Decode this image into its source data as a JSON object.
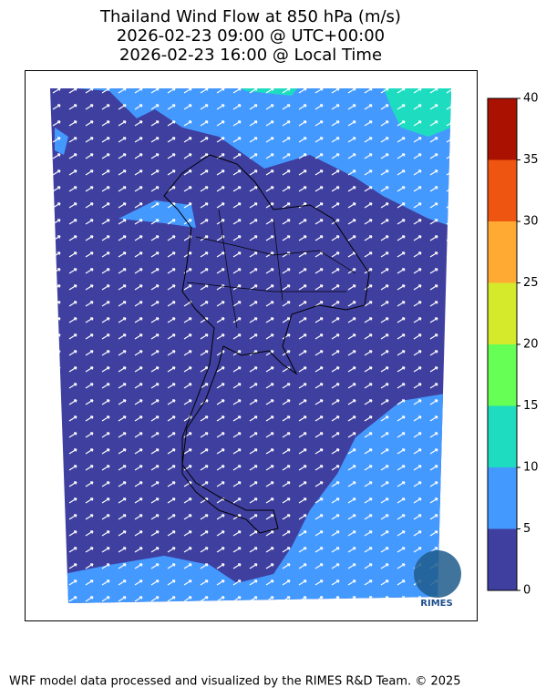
{
  "header": {
    "title": [
      "Thailand Wind Flow at 850 hPa (m/s)",
      "2026-02-23 09:00 @ UTC+00:00",
      "2026-02-23 16:00 @ Local Time"
    ]
  },
  "colorbar": {
    "bounds": [
      0,
      5,
      10,
      15,
      20,
      25,
      30,
      35,
      40
    ],
    "colors": [
      "#3f3f9f",
      "#4499ff",
      "#1edcc0",
      "#66ff55",
      "#d4ea2a",
      "#ffaa33",
      "#ee5511",
      "#aa1100"
    ],
    "ticks": [
      0,
      5,
      10,
      15,
      20,
      25,
      30,
      35,
      40
    ]
  },
  "logo": "RIMES",
  "footer": "WRF model data processed and visualized by the RIMES R&D Team. © 2025"
}
